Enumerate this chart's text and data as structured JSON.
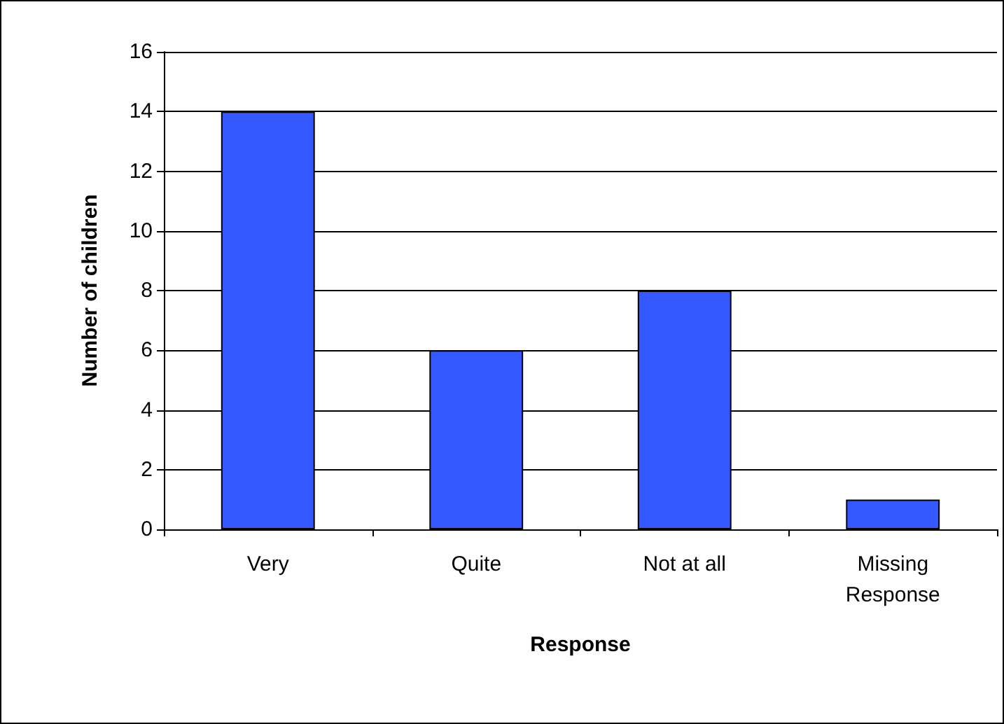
{
  "chart_data": {
    "type": "bar",
    "xlabel": "Response",
    "ylabel": "Number of children",
    "categories": [
      "Very",
      "Quite",
      "Not at all",
      "Missing\nResponse"
    ],
    "values": [
      14,
      6,
      8,
      1
    ],
    "color": "#3358ff",
    "ylim": [
      0,
      16
    ],
    "yticks": [
      0,
      2,
      4,
      6,
      8,
      10,
      12,
      14,
      16
    ],
    "grid": "y"
  }
}
